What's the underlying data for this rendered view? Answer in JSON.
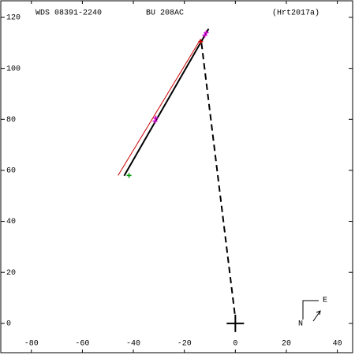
{
  "chart_data": {
    "type": "orbit",
    "header": {
      "left": "WDS 08391-2240",
      "center": "BU  208AC",
      "right": "(Hrt2017a)"
    },
    "xlim": [
      -92,
      46
    ],
    "ylim": [
      -11.5,
      126.5
    ],
    "xticks": [
      -80,
      -60,
      -40,
      -20,
      0,
      20,
      40
    ],
    "yticks": [
      0,
      20,
      40,
      60,
      80,
      100,
      120
    ],
    "series": [
      {
        "kind": "line",
        "color": "#cc0000",
        "dash": false,
        "x": [
          -46,
          -13.6
        ],
        "y": [
          58,
          111.5
        ]
      },
      {
        "kind": "line",
        "color": "#000000",
        "dash": false,
        "x": [
          -43.6,
          -10.5
        ],
        "y": [
          57.9,
          115.5
        ]
      },
      {
        "kind": "line",
        "color": "#000000",
        "dash": true,
        "x": [
          -13.3,
          0
        ],
        "y": [
          110,
          2
        ]
      },
      {
        "kind": "points",
        "color": "#cc00cc",
        "x": [
          -31.2,
          -31.5,
          -11.4,
          -12
        ],
        "y": [
          80.5,
          79.3,
          114,
          113
        ]
      },
      {
        "kind": "points",
        "color": "#cc0000",
        "x": [
          -13.6
        ],
        "y": [
          110.5
        ]
      },
      {
        "kind": "points",
        "color": "#009900",
        "x": [
          -41.7
        ],
        "y": [
          58
        ]
      }
    ],
    "compass": {
      "north": "N",
      "east": "E"
    }
  }
}
